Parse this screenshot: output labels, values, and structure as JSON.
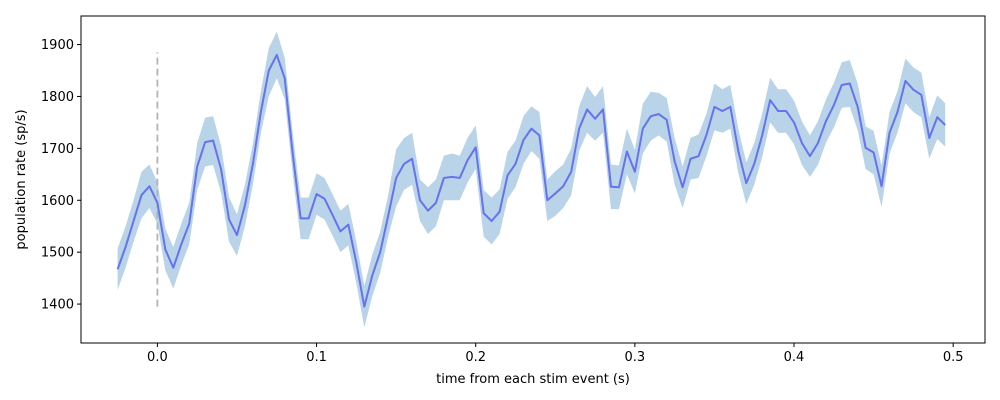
{
  "chart_data": {
    "type": "line",
    "xlabel": "time from each stim event (s)",
    "ylabel": "population rate (sp/s)",
    "xlim": [
      -0.048,
      0.52
    ],
    "ylim": [
      1325,
      1955
    ],
    "xticks": [
      0.0,
      0.1,
      0.2,
      0.3,
      0.4,
      0.5
    ],
    "xtick_labels": [
      "0.0",
      "0.1",
      "0.2",
      "0.3",
      "0.4",
      "0.5"
    ],
    "yticks": [
      1400,
      1500,
      1600,
      1700,
      1800,
      1900
    ],
    "ytick_labels": [
      "1400",
      "1500",
      "1600",
      "1700",
      "1800",
      "1900"
    ],
    "grid": false,
    "colors": {
      "line": "#6673ee",
      "band": "#b9d3e8",
      "marker": "#b4b4b4"
    },
    "stim_marker": {
      "x": 0.0,
      "y_from": 1395,
      "y_to": 1885
    },
    "x": [
      -0.025,
      -0.02,
      -0.015,
      -0.01,
      -0.005,
      0.0,
      0.005,
      0.01,
      0.015,
      0.02,
      0.025,
      0.03,
      0.035,
      0.04,
      0.045,
      0.05,
      0.055,
      0.06,
      0.065,
      0.07,
      0.075,
      0.08,
      0.085,
      0.09,
      0.095,
      0.1,
      0.105,
      0.11,
      0.115,
      0.12,
      0.125,
      0.13,
      0.135,
      0.14,
      0.145,
      0.15,
      0.155,
      0.16,
      0.165,
      0.17,
      0.175,
      0.18,
      0.185,
      0.19,
      0.195,
      0.2,
      0.205,
      0.21,
      0.215,
      0.22,
      0.225,
      0.23,
      0.235,
      0.24,
      0.245,
      0.25,
      0.255,
      0.26,
      0.265,
      0.27,
      0.275,
      0.28,
      0.285,
      0.29,
      0.295,
      0.3,
      0.305,
      0.31,
      0.315,
      0.32,
      0.325,
      0.33,
      0.335,
      0.34,
      0.345,
      0.35,
      0.355,
      0.36,
      0.365,
      0.37,
      0.375,
      0.38,
      0.385,
      0.39,
      0.395,
      0.4,
      0.405,
      0.41,
      0.415,
      0.42,
      0.425,
      0.43,
      0.435,
      0.44,
      0.445,
      0.45,
      0.455,
      0.46,
      0.465,
      0.47,
      0.475,
      0.48,
      0.485,
      0.49,
      0.495
    ],
    "series": [
      {
        "values": [
          1467,
          1510,
          1560,
          1610,
          1627,
          1595,
          1505,
          1470,
          1515,
          1555,
          1665,
          1712,
          1715,
          1660,
          1563,
          1533,
          1590,
          1670,
          1770,
          1850,
          1880,
          1835,
          1690,
          1565,
          1565,
          1612,
          1603,
          1572,
          1540,
          1553,
          1480,
          1395,
          1455,
          1500,
          1570,
          1643,
          1670,
          1680,
          1600,
          1580,
          1595,
          1643,
          1645,
          1643,
          1678,
          1702,
          1575,
          1560,
          1578,
          1648,
          1670,
          1716,
          1738,
          1725,
          1600,
          1613,
          1627,
          1655,
          1738,
          1775,
          1757,
          1775,
          1626,
          1625,
          1694,
          1655,
          1738,
          1762,
          1766,
          1755,
          1675,
          1625,
          1680,
          1685,
          1726,
          1780,
          1772,
          1780,
          1695,
          1633,
          1670,
          1725,
          1793,
          1772,
          1772,
          1750,
          1710,
          1685,
          1710,
          1752,
          1783,
          1822,
          1825,
          1780,
          1701,
          1692,
          1627,
          1730,
          1770,
          1830,
          1813,
          1803,
          1720,
          1760,
          1745
        ],
        "lower": [
          1427,
          1470,
          1520,
          1565,
          1585,
          1555,
          1465,
          1430,
          1475,
          1515,
          1620,
          1665,
          1668,
          1615,
          1520,
          1493,
          1550,
          1630,
          1730,
          1800,
          1835,
          1795,
          1650,
          1525,
          1525,
          1572,
          1563,
          1532,
          1500,
          1513,
          1440,
          1355,
          1415,
          1460,
          1530,
          1588,
          1620,
          1630,
          1560,
          1535,
          1550,
          1600,
          1600,
          1600,
          1635,
          1660,
          1530,
          1515,
          1535,
          1603,
          1625,
          1670,
          1695,
          1680,
          1560,
          1570,
          1585,
          1610,
          1695,
          1730,
          1715,
          1730,
          1583,
          1583,
          1650,
          1613,
          1690,
          1715,
          1725,
          1713,
          1630,
          1585,
          1640,
          1643,
          1685,
          1735,
          1730,
          1738,
          1652,
          1593,
          1630,
          1683,
          1750,
          1730,
          1730,
          1708,
          1668,
          1645,
          1668,
          1710,
          1740,
          1778,
          1780,
          1735,
          1660,
          1650,
          1587,
          1690,
          1730,
          1787,
          1770,
          1760,
          1680,
          1718,
          1703
        ],
        "upper": [
          1507,
          1550,
          1600,
          1655,
          1669,
          1635,
          1545,
          1510,
          1555,
          1595,
          1710,
          1759,
          1762,
          1705,
          1606,
          1573,
          1630,
          1710,
          1810,
          1893,
          1925,
          1875,
          1730,
          1605,
          1605,
          1652,
          1643,
          1612,
          1580,
          1593,
          1520,
          1435,
          1495,
          1540,
          1610,
          1698,
          1720,
          1730,
          1640,
          1625,
          1640,
          1686,
          1690,
          1686,
          1721,
          1744,
          1620,
          1605,
          1621,
          1693,
          1715,
          1762,
          1781,
          1770,
          1640,
          1656,
          1669,
          1700,
          1781,
          1820,
          1799,
          1820,
          1669,
          1667,
          1738,
          1697,
          1786,
          1809,
          1807,
          1797,
          1720,
          1665,
          1720,
          1727,
          1767,
          1825,
          1814,
          1822,
          1738,
          1673,
          1710,
          1767,
          1836,
          1814,
          1814,
          1792,
          1752,
          1725,
          1752,
          1794,
          1826,
          1866,
          1870,
          1825,
          1742,
          1734,
          1667,
          1770,
          1810,
          1873,
          1856,
          1846,
          1760,
          1802,
          1787
        ]
      }
    ]
  }
}
